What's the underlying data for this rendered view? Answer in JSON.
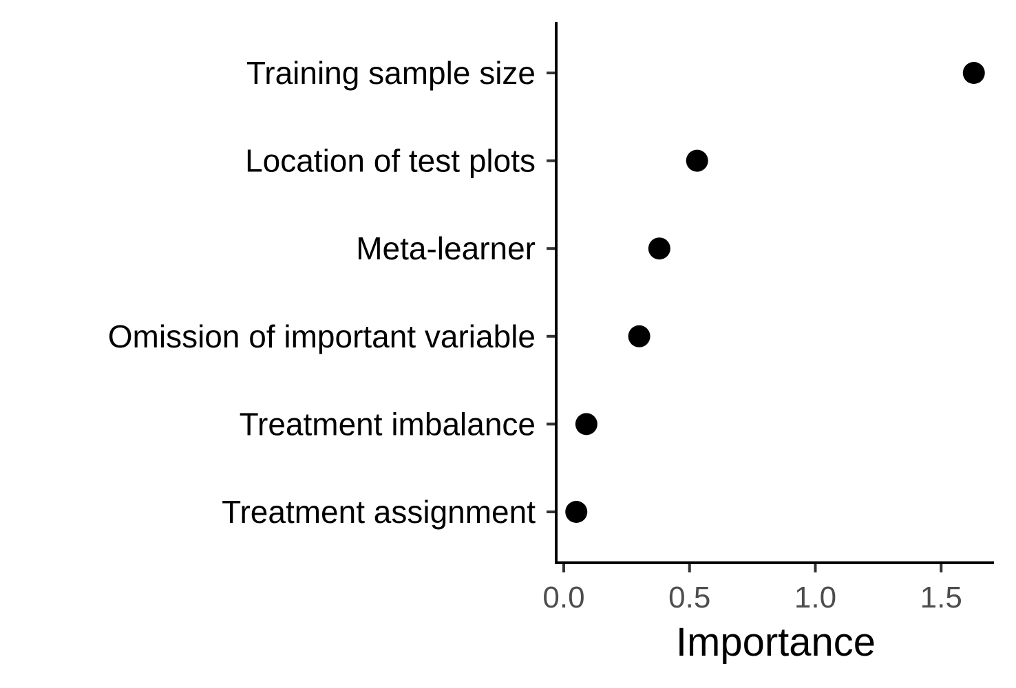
{
  "chart_data": {
    "type": "scatter",
    "categories": [
      "Training sample size",
      "Location of test plots",
      "Meta-learner",
      "Omission of important variable",
      "Treatment imbalance",
      "Treatment assignment"
    ],
    "values": [
      1.63,
      0.53,
      0.38,
      0.3,
      0.09,
      0.05
    ],
    "xlabel": "Importance",
    "ylabel": "",
    "xlim": [
      -0.03,
      1.71
    ],
    "x_ticks": [
      0.0,
      0.5,
      1.0,
      1.5
    ],
    "x_tick_labels": [
      "0.0",
      "0.5",
      "1.0",
      "1.5"
    ],
    "grid": false,
    "legend": "none",
    "colors": {
      "point": "#000000",
      "axis": "#000000",
      "tick_text": "#4d4d4d"
    }
  }
}
